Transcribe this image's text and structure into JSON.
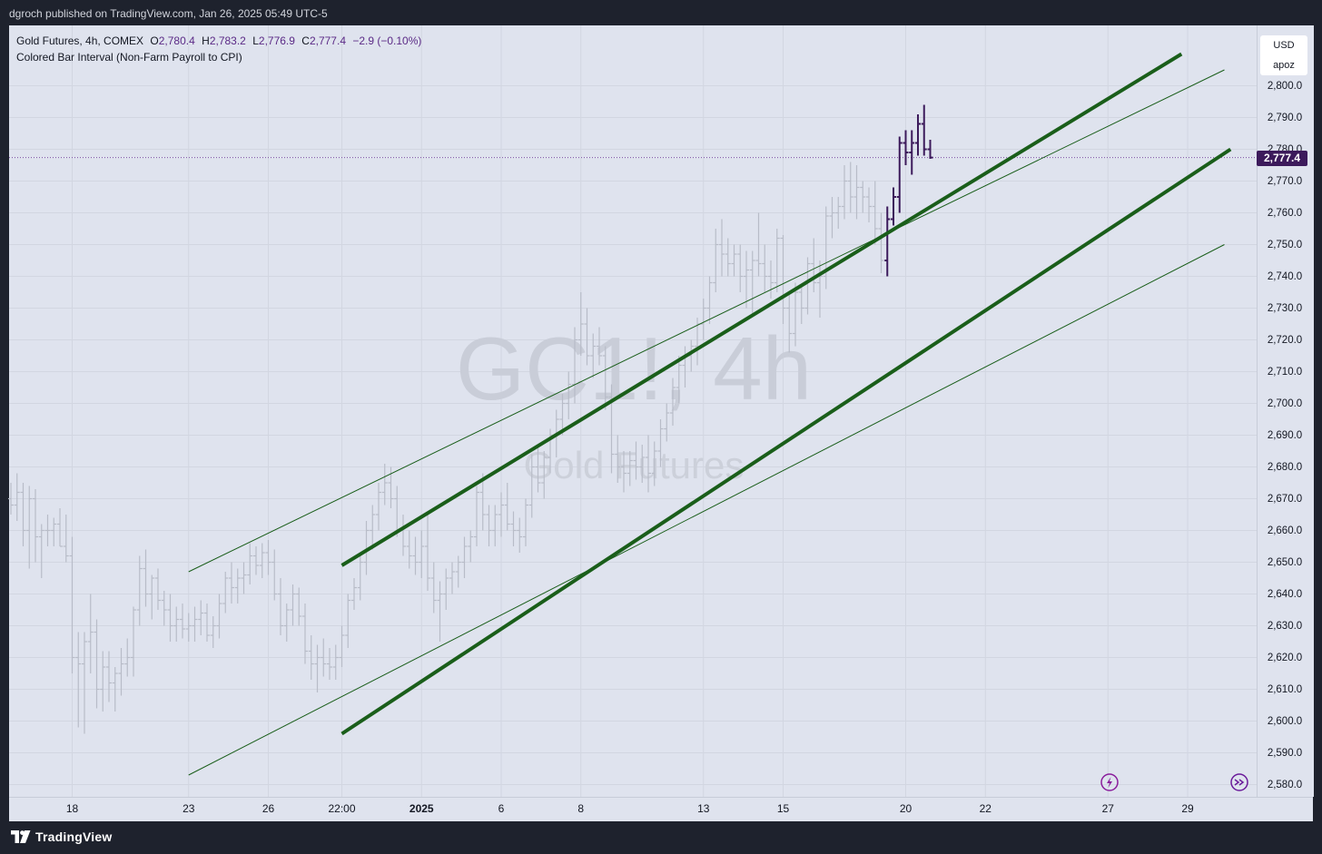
{
  "header": {
    "published_text": "dgroch published on TradingView.com, Jan 26, 2025 05:49 UTC-5"
  },
  "legend": {
    "symbol_line": "Gold Futures, 4h, COMEX",
    "open_label": "O",
    "open": "2,780.4",
    "high_label": "H",
    "high": "2,783.2",
    "low_label": "L",
    "low": "2,776.9",
    "close_label": "C",
    "close": "2,777.4",
    "change": "−2.9 (−0.10%)",
    "indicator": "Colored Bar Interval (Non-Farm Payroll to CPI)"
  },
  "watermark": {
    "symbol": "GC1!, 4h",
    "name": "Gold Futures"
  },
  "price_axis": {
    "currency": "USD",
    "mode": "apoz",
    "last_price": "2,777.4"
  },
  "footer": {
    "brand": "TradingView"
  },
  "colors": {
    "background": "#dfe3ee",
    "frame": "#1e222d",
    "grey_bars": "#b8bcc8",
    "highlight_bars": "#3c1a5b",
    "channel_lines": "#1a5e1a",
    "last_price": "#3c1a5b"
  },
  "icons": [
    "lightning-icon",
    "scroll-right-icon"
  ],
  "chart_data": {
    "type": "ohlc",
    "title": "Gold Futures, 4h, COMEX",
    "ylim": [
      2575,
      2810
    ],
    "y_ticks": [
      2580,
      2590,
      2600,
      2610,
      2620,
      2630,
      2640,
      2650,
      2660,
      2670,
      2680,
      2690,
      2700,
      2710,
      2720,
      2730,
      2740,
      2750,
      2760,
      2770,
      2780,
      2790,
      2800
    ],
    "y_tick_labels": [
      "2,580.0",
      "2,590.0",
      "2,600.0",
      "2,610.0",
      "2,620.0",
      "2,630.0",
      "2,640.0",
      "2,650.0",
      "2,660.0",
      "2,670.0",
      "2,680.0",
      "2,690.0",
      "2,700.0",
      "2,710.0",
      "2,720.0",
      "2,730.0",
      "2,740.0",
      "2,750.0",
      "2,760.0",
      "2,770.0",
      "2,780.0",
      "2,790.0",
      "2,800.0"
    ],
    "x_ticks": [
      {
        "label": "18",
        "bar": 10,
        "bold": false
      },
      {
        "label": "23",
        "bar": 29,
        "bold": false
      },
      {
        "label": "26",
        "bar": 42,
        "bold": false
      },
      {
        "label": "22:00",
        "bar": 54,
        "bold": false
      },
      {
        "label": "2025",
        "bar": 67,
        "bold": true
      },
      {
        "label": "6",
        "bar": 80,
        "bold": false
      },
      {
        "label": "8",
        "bar": 93,
        "bold": false
      },
      {
        "label": "13",
        "bar": 113,
        "bold": false
      },
      {
        "label": "15",
        "bar": 126,
        "bold": false
      },
      {
        "label": "20",
        "bar": 146,
        "bold": false
      },
      {
        "label": "22",
        "bar": 159,
        "bold": false
      },
      {
        "label": "27",
        "bar": 179,
        "bold": false
      },
      {
        "label": "29",
        "bar": 192,
        "bold": false
      }
    ],
    "grid": true,
    "last_price": 2777.4,
    "highlight_start_index": 143,
    "ohlc": [
      [
        2670,
        2675,
        2665,
        2668
      ],
      [
        2668,
        2678,
        2663,
        2672
      ],
      [
        2672,
        2675,
        2655,
        2660
      ],
      [
        2660,
        2674,
        2648,
        2670
      ],
      [
        2670,
        2673,
        2650,
        2658
      ],
      [
        2658,
        2662,
        2645,
        2660
      ],
      [
        2660,
        2665,
        2655,
        2660
      ],
      [
        2660,
        2664,
        2655,
        2662
      ],
      [
        2662,
        2667,
        2655,
        2655
      ],
      [
        2655,
        2665,
        2650,
        2652
      ],
      [
        2652,
        2658,
        2615,
        2620
      ],
      [
        2620,
        2628,
        2598,
        2618
      ],
      [
        2618,
        2628,
        2596,
        2625
      ],
      [
        2625,
        2640,
        2615,
        2628
      ],
      [
        2628,
        2632,
        2604,
        2610
      ],
      [
        2610,
        2622,
        2603,
        2617
      ],
      [
        2617,
        2622,
        2606,
        2612
      ],
      [
        2612,
        2617,
        2603,
        2615
      ],
      [
        2615,
        2623,
        2608,
        2618
      ],
      [
        2618,
        2626,
        2614,
        2620
      ],
      [
        2620,
        2636,
        2614,
        2635
      ],
      [
        2635,
        2652,
        2630,
        2648
      ],
      [
        2648,
        2654,
        2636,
        2640
      ],
      [
        2640,
        2646,
        2632,
        2645
      ],
      [
        2645,
        2648,
        2635,
        2638
      ],
      [
        2638,
        2641,
        2630,
        2635
      ],
      [
        2635,
        2640,
        2625,
        2630
      ],
      [
        2630,
        2636,
        2625,
        2632
      ],
      [
        2632,
        2637,
        2626,
        2629
      ],
      [
        2629,
        2634,
        2625,
        2630
      ],
      [
        2630,
        2636,
        2625,
        2632
      ],
      [
        2632,
        2638,
        2627,
        2634
      ],
      [
        2634,
        2637,
        2625,
        2627
      ],
      [
        2627,
        2633,
        2623,
        2630
      ],
      [
        2630,
        2640,
        2626,
        2637
      ],
      [
        2637,
        2647,
        2634,
        2645
      ],
      [
        2645,
        2650,
        2637,
        2642
      ],
      [
        2642,
        2648,
        2637,
        2645
      ],
      [
        2645,
        2650,
        2640,
        2646
      ],
      [
        2646,
        2656,
        2643,
        2652
      ],
      [
        2652,
        2655,
        2646,
        2649
      ],
      [
        2649,
        2656,
        2645,
        2653
      ],
      [
        2653,
        2657,
        2646,
        2650
      ],
      [
        2650,
        2654,
        2638,
        2640
      ],
      [
        2640,
        2645,
        2627,
        2630
      ],
      [
        2630,
        2637,
        2625,
        2635
      ],
      [
        2635,
        2643,
        2630,
        2640
      ],
      [
        2640,
        2642,
        2630,
        2633
      ],
      [
        2633,
        2637,
        2618,
        2622
      ],
      [
        2622,
        2627,
        2613,
        2618
      ],
      [
        2618,
        2624,
        2609,
        2620
      ],
      [
        2620,
        2626,
        2614,
        2618
      ],
      [
        2618,
        2623,
        2613,
        2617
      ],
      [
        2617,
        2624,
        2613,
        2620
      ],
      [
        2620,
        2630,
        2617,
        2627
      ],
      [
        2627,
        2640,
        2623,
        2638
      ],
      [
        2638,
        2645,
        2635,
        2642
      ],
      [
        2642,
        2652,
        2638,
        2650
      ],
      [
        2650,
        2663,
        2646,
        2660
      ],
      [
        2660,
        2668,
        2654,
        2665
      ],
      [
        2665,
        2675,
        2660,
        2672
      ],
      [
        2672,
        2681,
        2668,
        2675
      ],
      [
        2675,
        2680,
        2667,
        2670
      ],
      [
        2670,
        2674,
        2658,
        2660
      ],
      [
        2660,
        2665,
        2652,
        2655
      ],
      [
        2655,
        2660,
        2648,
        2652
      ],
      [
        2652,
        2658,
        2646,
        2650
      ],
      [
        2650,
        2660,
        2645,
        2655
      ],
      [
        2655,
        2666,
        2641,
        2645
      ],
      [
        2645,
        2650,
        2634,
        2638
      ],
      [
        2638,
        2644,
        2625,
        2640
      ],
      [
        2640,
        2648,
        2635,
        2645
      ],
      [
        2645,
        2650,
        2640,
        2647
      ],
      [
        2647,
        2652,
        2642,
        2650
      ],
      [
        2650,
        2658,
        2645,
        2655
      ],
      [
        2655,
        2660,
        2650,
        2658
      ],
      [
        2658,
        2674,
        2655,
        2672
      ],
      [
        2672,
        2678,
        2660,
        2665
      ],
      [
        2665,
        2668,
        2655,
        2660
      ],
      [
        2660,
        2668,
        2655,
        2665
      ],
      [
        2665,
        2672,
        2658,
        2668
      ],
      [
        2668,
        2675,
        2660,
        2662
      ],
      [
        2662,
        2666,
        2655,
        2660
      ],
      [
        2660,
        2664,
        2653,
        2658
      ],
      [
        2658,
        2670,
        2655,
        2668
      ],
      [
        2668,
        2684,
        2664,
        2680
      ],
      [
        2680,
        2686,
        2672,
        2675
      ],
      [
        2675,
        2685,
        2670,
        2683
      ],
      [
        2683,
        2692,
        2678,
        2690
      ],
      [
        2690,
        2698,
        2683,
        2695
      ],
      [
        2695,
        2703,
        2690,
        2700
      ],
      [
        2700,
        2710,
        2695,
        2706
      ],
      [
        2706,
        2724,
        2700,
        2720
      ],
      [
        2720,
        2735,
        2715,
        2725
      ],
      [
        2725,
        2730,
        2712,
        2715
      ],
      [
        2715,
        2722,
        2708,
        2718
      ],
      [
        2718,
        2724,
        2712,
        2715
      ],
      [
        2715,
        2718,
        2698,
        2702
      ],
      [
        2702,
        2706,
        2678,
        2684
      ],
      [
        2684,
        2690,
        2675,
        2680
      ],
      [
        2680,
        2685,
        2672,
        2678
      ],
      [
        2678,
        2685,
        2674,
        2682
      ],
      [
        2682,
        2688,
        2676,
        2680
      ],
      [
        2680,
        2687,
        2675,
        2683
      ],
      [
        2683,
        2690,
        2672,
        2678
      ],
      [
        2678,
        2688,
        2674,
        2685
      ],
      [
        2685,
        2695,
        2680,
        2692
      ],
      [
        2692,
        2700,
        2688,
        2697
      ],
      [
        2697,
        2708,
        2693,
        2705
      ],
      [
        2705,
        2715,
        2700,
        2712
      ],
      [
        2712,
        2718,
        2705,
        2715
      ],
      [
        2715,
        2720,
        2710,
        2718
      ],
      [
        2718,
        2727,
        2712,
        2725
      ],
      [
        2725,
        2733,
        2720,
        2730
      ],
      [
        2730,
        2740,
        2725,
        2738
      ],
      [
        2738,
        2755,
        2735,
        2750
      ],
      [
        2750,
        2758,
        2740,
        2747
      ],
      [
        2747,
        2752,
        2740,
        2744
      ],
      [
        2744,
        2750,
        2740,
        2747
      ],
      [
        2747,
        2750,
        2735,
        2740
      ],
      [
        2740,
        2748,
        2730,
        2742
      ],
      [
        2742,
        2748,
        2728,
        2745
      ],
      [
        2745,
        2760,
        2740,
        2744
      ],
      [
        2744,
        2750,
        2735,
        2740
      ],
      [
        2740,
        2745,
        2733,
        2738
      ],
      [
        2738,
        2755,
        2735,
        2752
      ],
      [
        2752,
        2753,
        2725,
        2730
      ],
      [
        2730,
        2735,
        2716,
        2722
      ],
      [
        2722,
        2738,
        2718,
        2735
      ],
      [
        2735,
        2737,
        2725,
        2730
      ],
      [
        2730,
        2746,
        2728,
        2744
      ],
      [
        2744,
        2752,
        2735,
        2738
      ],
      [
        2738,
        2745,
        2727,
        2740
      ],
      [
        2740,
        2762,
        2736,
        2759
      ],
      [
        2759,
        2765,
        2752,
        2760
      ],
      [
        2760,
        2765,
        2755,
        2762
      ],
      [
        2762,
        2775,
        2758,
        2770
      ],
      [
        2770,
        2776,
        2760,
        2765
      ],
      [
        2765,
        2775,
        2758,
        2768
      ],
      [
        2768,
        2770,
        2760,
        2765
      ],
      [
        2765,
        2768,
        2757,
        2762
      ],
      [
        2762,
        2770,
        2750,
        2755
      ],
      [
        2755,
        2760,
        2741,
        2745
      ],
      [
        2745,
        2762,
        2740,
        2758
      ],
      [
        2758,
        2768,
        2756,
        2765
      ],
      [
        2765,
        2784,
        2760,
        2782
      ],
      [
        2782,
        2786,
        2775,
        2779
      ],
      [
        2779,
        2786,
        2772,
        2782
      ],
      [
        2782,
        2791,
        2778,
        2788
      ],
      [
        2788,
        2794,
        2778,
        2780
      ],
      [
        2780,
        2783,
        2777,
        2777.4
      ]
    ],
    "trendlines": [
      {
        "style": "thick",
        "from": {
          "bar": 54,
          "price": 2649
        },
        "to": {
          "bar": 191,
          "price": 2810
        }
      },
      {
        "style": "thick",
        "from": {
          "bar": 54,
          "price": 2596
        },
        "to": {
          "bar": 199,
          "price": 2780
        }
      },
      {
        "style": "thin",
        "from": {
          "bar": 29,
          "price": 2647
        },
        "to": {
          "bar": 198,
          "price": 2805
        }
      },
      {
        "style": "thin",
        "from": {
          "bar": 29,
          "price": 2583
        },
        "to": {
          "bar": 198,
          "price": 2750
        }
      }
    ]
  }
}
